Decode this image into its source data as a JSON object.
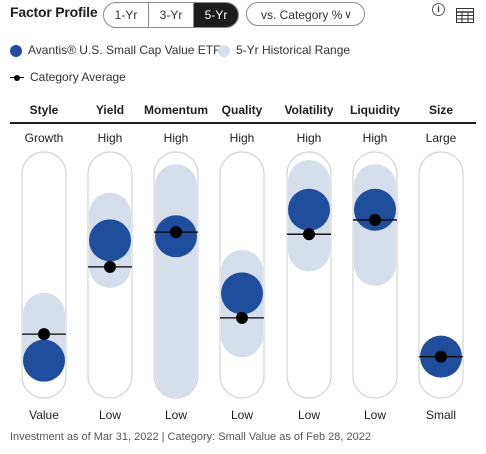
{
  "header": {
    "title": "Factor Profile",
    "periods": [
      {
        "label": "1-Yr",
        "active": false
      },
      {
        "label": "3-Yr",
        "active": false
      },
      {
        "label": "5-Yr",
        "active": true
      }
    ],
    "compare_label": "vs. Category %",
    "info_icon": "info-icon",
    "table_icon": "table-icon"
  },
  "legend": {
    "fund": "Avantis® U.S. Small Cap Value ETF",
    "range": "5-Yr Historical Range",
    "category": "Category Average"
  },
  "colors": {
    "fund": "#1f4e9c",
    "range": "#d6deec",
    "track_border": "#d4d4d4",
    "category": "#000000"
  },
  "chart_data": {
    "type": "scatter",
    "scale": [
      0,
      100
    ],
    "factors": [
      {
        "name": "Style",
        "top": "Growth",
        "bottom": "Value",
        "fund": 8,
        "category": 21,
        "range": [
          8,
          31
        ]
      },
      {
        "name": "Yield",
        "top": "High",
        "bottom": "Low",
        "fund": 67,
        "category": 54,
        "range": [
          54,
          80
        ]
      },
      {
        "name": "Momentum",
        "top": "High",
        "bottom": "Low",
        "fund": 69,
        "category": 71,
        "range": [
          0,
          94
        ]
      },
      {
        "name": "Quality",
        "top": "High",
        "bottom": "Low",
        "fund": 41,
        "category": 29,
        "range": [
          20,
          52
        ]
      },
      {
        "name": "Volatility",
        "top": "High",
        "bottom": "Low",
        "fund": 82,
        "category": 70,
        "range": [
          62,
          96
        ]
      },
      {
        "name": "Liquidity",
        "top": "High",
        "bottom": "Low",
        "fund": 82,
        "category": 77,
        "range": [
          55,
          94
        ]
      },
      {
        "name": "Size",
        "top": "Large",
        "bottom": "Small",
        "fund": 10,
        "category": 10,
        "range": [
          10,
          10
        ]
      }
    ]
  },
  "footer": "Investment as of Mar 31, 2022 | Category: Small Value as of Feb 28, 2022"
}
